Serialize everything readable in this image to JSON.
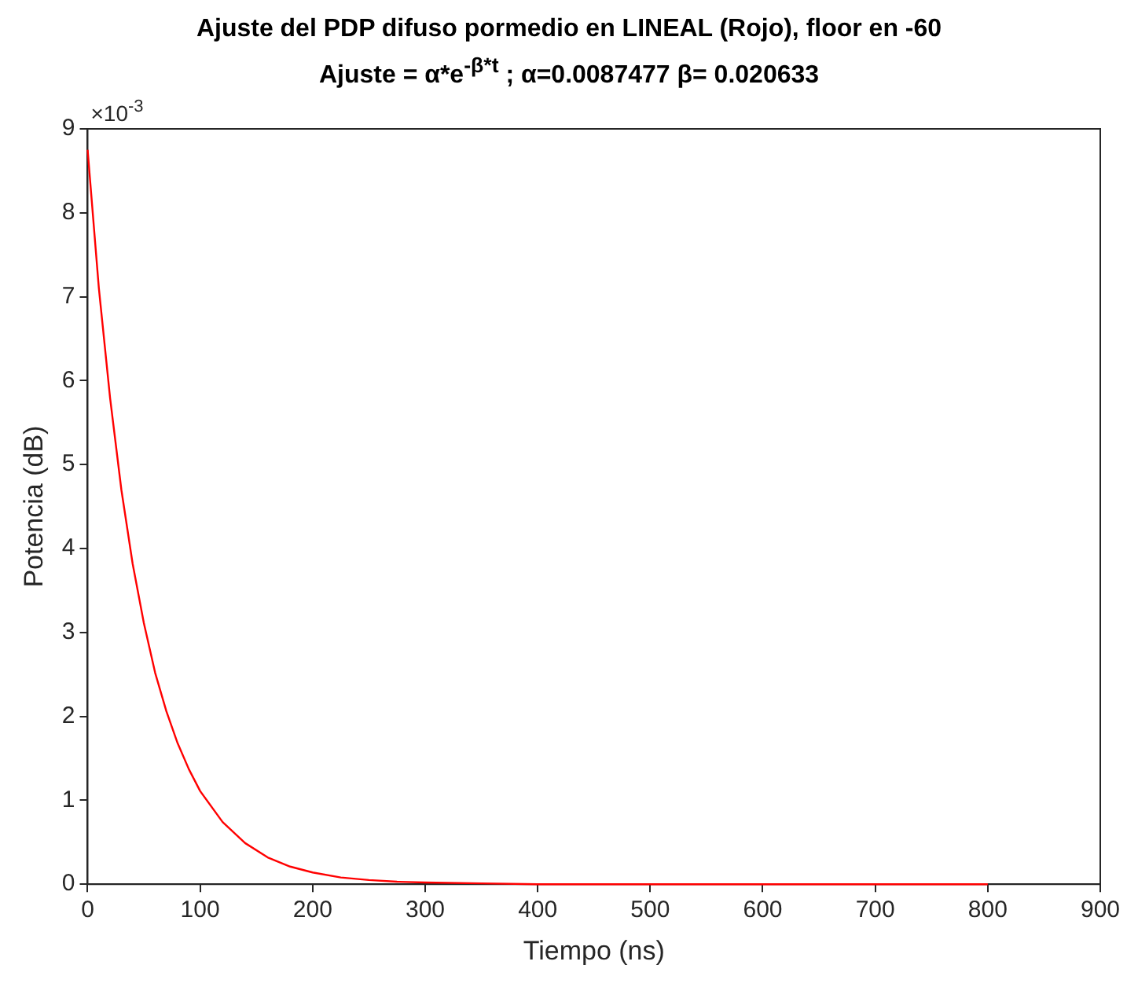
{
  "chart_data": {
    "type": "line",
    "title": "Ajuste del PDP difuso pormedio en LINEAL (Rojo), floor en -60",
    "subtitle": "Ajuste = α*e$^{-β*t}$  ;  α=0.0087477 β= 0.020633",
    "xlabel": "Tiempo (ns)",
    "ylabel": "Potencia (dB)",
    "annotations": [
      "×10$^{-3}$"
    ],
    "x": [
      0,
      10,
      20,
      30,
      40,
      50,
      60,
      70,
      80,
      90,
      100,
      120,
      140,
      160,
      180,
      200,
      225,
      250,
      275,
      300,
      350,
      400,
      500,
      600,
      700,
      800
    ],
    "series": [
      {
        "color": "#ff0000",
        "values": [
          8.75,
          7.1,
          5.79,
          4.7,
          3.82,
          3.11,
          2.52,
          2.06,
          1.68,
          1.37,
          1.11,
          0.74,
          0.49,
          0.32,
          0.21,
          0.14,
          0.08,
          0.05,
          0.03,
          0.02,
          0.01,
          0,
          0,
          0,
          0,
          0
        ]
      }
    ],
    "xlim": [
      0,
      900
    ],
    "xticks": [
      0,
      100,
      200,
      300,
      400,
      500,
      600,
      700,
      800,
      900
    ],
    "ylim": [
      0,
      9
    ],
    "yticks": [
      0,
      1,
      2,
      3,
      4,
      5,
      6,
      7,
      8,
      9
    ],
    "grid": false,
    "legend": false,
    "marker": "none",
    "line_style": "solid"
  }
}
